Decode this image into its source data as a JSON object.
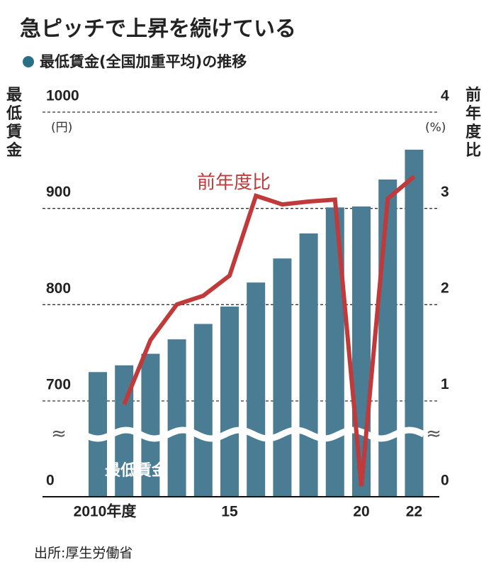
{
  "chart_data": {
    "type": "bar_line",
    "title": "急ピッチで上昇を続けている",
    "subtitle": "最低賃金(全国加重平均)の推移",
    "y_label": "最低賃金",
    "y2_label": "前年度比",
    "y_unit": "(円)",
    "y2_unit": "(%)",
    "source": "出所:厚生労働省",
    "y_break": true,
    "categories": [
      "2010年度",
      null,
      null,
      null,
      null,
      "15",
      null,
      null,
      null,
      null,
      "20",
      null,
      "22"
    ],
    "series": [
      {
        "name": "最低賃金",
        "type": "bar",
        "color": "#4a7c93",
        "values": [
          730,
          737,
          749,
          764,
          780,
          798,
          823,
          848,
          874,
          901,
          902,
          930,
          961
        ]
      },
      {
        "name": "前年度比",
        "type": "line",
        "axis": "y2",
        "color": "#c0393b",
        "values": [
          null,
          0.96,
          1.63,
          2.0,
          2.09,
          2.3,
          3.13,
          3.04,
          3.07,
          3.09,
          0.11,
          3.1,
          3.33
        ]
      }
    ],
    "ylim": [
      0,
      1000
    ],
    "yticks": [
      0,
      700,
      800,
      900,
      1000
    ],
    "y2lim": [
      0,
      4
    ],
    "y2ticks": [
      0,
      1,
      2,
      3,
      4
    ]
  }
}
